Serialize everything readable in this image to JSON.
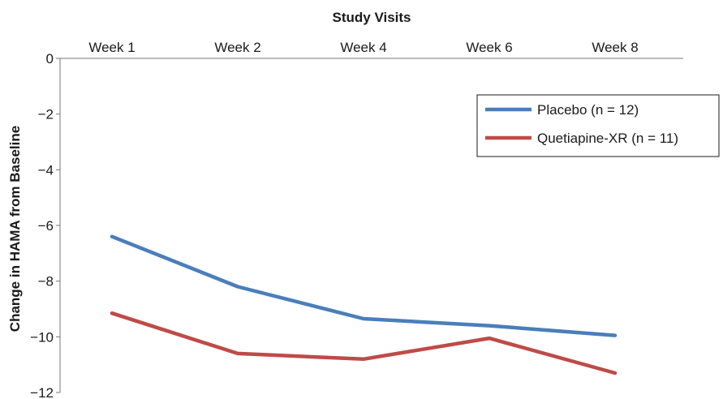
{
  "chart_data": {
    "type": "line",
    "title": "",
    "xlabel": "Study Visits",
    "ylabel": "Change in HAMA from Baseline",
    "categories": [
      "Week 1",
      "Week 2",
      "Week 4",
      "Week 6",
      "Week 8"
    ],
    "y_ticks": [
      "0",
      "−2",
      "−4",
      "−6",
      "−8",
      "−10",
      "−12"
    ],
    "ylim": [
      -12,
      0
    ],
    "x_axis_position": "top",
    "grid": false,
    "legend_position": "top-right",
    "series": [
      {
        "name": "Placebo (n = 12)",
        "color": "#4a7ebb",
        "values": [
          -6.4,
          -8.2,
          -9.35,
          -9.6,
          -9.95
        ]
      },
      {
        "name": "Quetiapine-XR (n = 11)",
        "color": "#be4b48",
        "values": [
          -9.15,
          -10.6,
          -10.8,
          -10.05,
          -11.3
        ]
      }
    ]
  }
}
